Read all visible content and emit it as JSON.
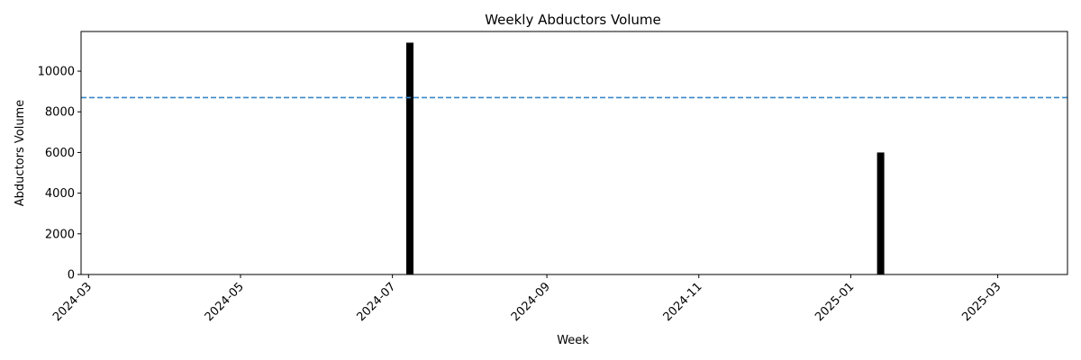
{
  "chart_data": {
    "type": "bar",
    "title": "Weekly Abductors Volume",
    "xlabel": "Week",
    "ylabel": "Abductors Volume",
    "x_axis": {
      "kind": "date",
      "range": [
        "2024-02-27",
        "2025-03-29"
      ],
      "ticks": [
        "2024-03-01",
        "2024-05-01",
        "2024-07-01",
        "2024-09-01",
        "2024-11-01",
        "2025-01-01",
        "2025-03-01"
      ],
      "tick_labels": [
        "2024-03",
        "2024-05",
        "2024-07",
        "2024-09",
        "2024-11",
        "2025-01",
        "2025-03"
      ]
    },
    "y_axis": {
      "range": [
        0,
        11950
      ],
      "ticks": [
        0,
        2000,
        4000,
        6000,
        8000,
        10000
      ],
      "tick_labels": [
        "0",
        "2000",
        "4000",
        "6000",
        "8000",
        "10000"
      ]
    },
    "series": [
      {
        "x": [
          "2024-07-08",
          "2025-01-13"
        ],
        "values": [
          11400,
          6000
        ],
        "color": "#000000"
      }
    ],
    "reference_line": {
      "y": 8700,
      "style": "dashed",
      "color": "#3a87c8"
    },
    "grid": false,
    "legend": "none"
  }
}
